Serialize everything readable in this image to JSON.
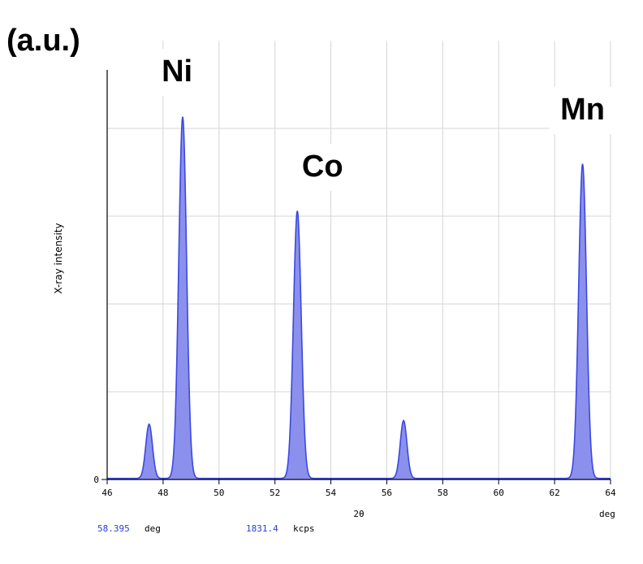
{
  "chart_data": {
    "type": "line",
    "title": "",
    "unit_label": "(a.u.)",
    "xlabel": "2θ",
    "x_unit": "deg",
    "ylabel": "X-ray intensity",
    "xlim": [
      46,
      64
    ],
    "ylim": [
      0,
      1
    ],
    "x_ticks": [
      46,
      48,
      50,
      52,
      54,
      56,
      58,
      60,
      62,
      64
    ],
    "y_tick_labels": [
      "0"
    ],
    "grid": true,
    "series": [
      {
        "color": "#3b48e0",
        "fill": "#8b90ec",
        "peaks": [
          {
            "center": 47.5,
            "height": 0.15,
            "width": 0.12
          },
          {
            "center": 48.7,
            "height": 1.0,
            "width": 0.14
          },
          {
            "center": 52.8,
            "height": 0.74,
            "width": 0.14
          },
          {
            "center": 56.6,
            "height": 0.16,
            "width": 0.12
          },
          {
            "center": 63.0,
            "height": 0.87,
            "width": 0.14
          }
        ]
      }
    ],
    "annotations": [
      {
        "text": "Ni",
        "x": 48.5
      },
      {
        "text": "Co",
        "x": 53.7
      },
      {
        "text": "Mn",
        "x": 63.0
      }
    ]
  },
  "readout": {
    "position_value": "58.395",
    "position_unit": "deg",
    "intensity_value": "1831.4",
    "intensity_unit": "kcps"
  }
}
